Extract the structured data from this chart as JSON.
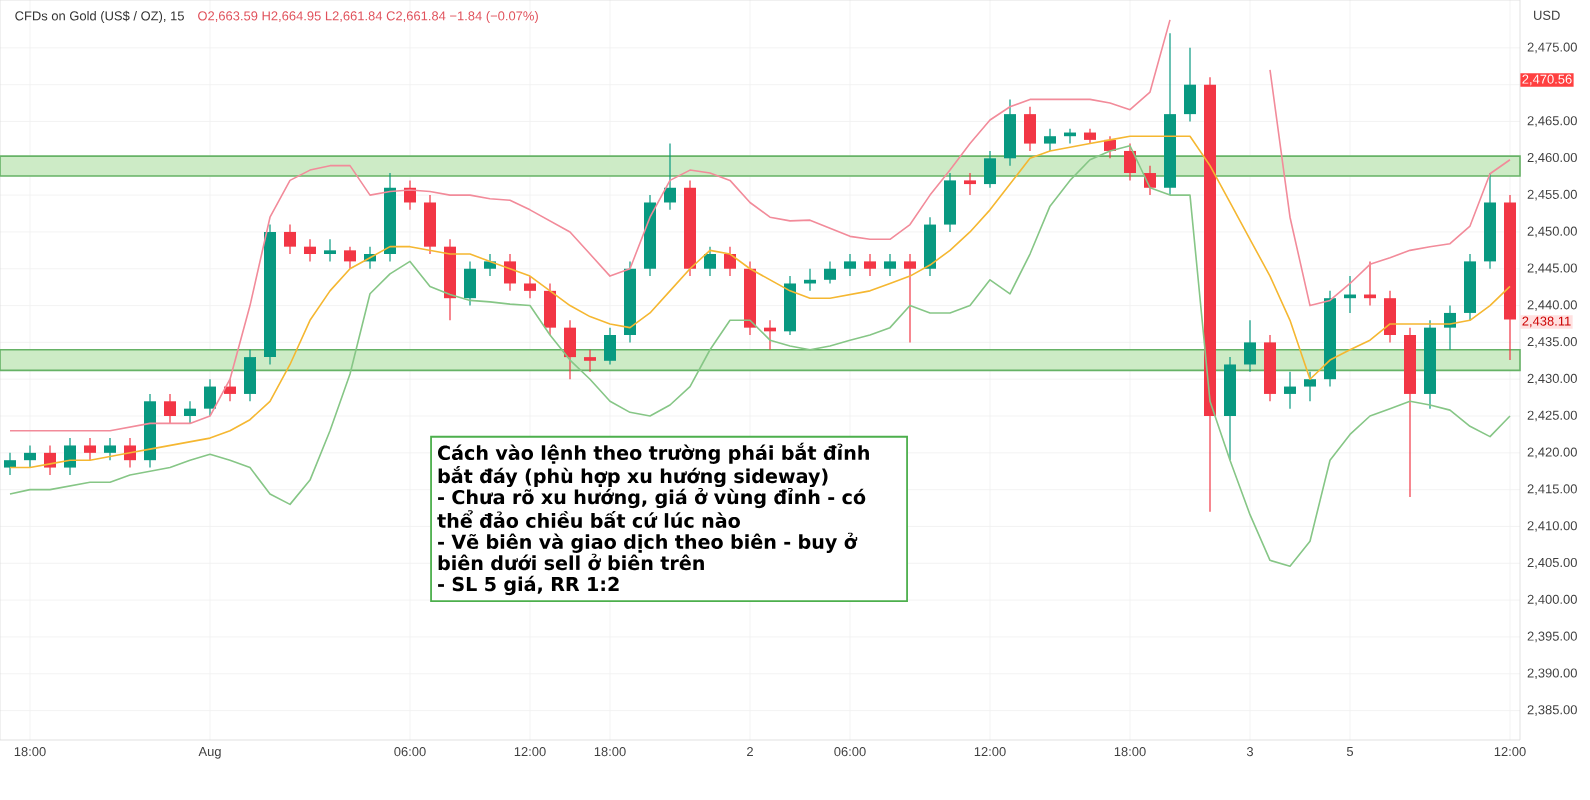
{
  "chart_data": {
    "type": "candlestick",
    "title": "CFDs on Gold (US$ / OZ), 15",
    "subtitle": "O2,663.59 H2,664.95 L2,661.84 C2,661.84 −1.84 (−0.07%)",
    "ylabel": "USD",
    "categories": [
      null,
      "18:00",
      null,
      null,
      null,
      null,
      null,
      null,
      null,
      null,
      "Aug",
      null,
      null,
      null,
      null,
      null,
      null,
      null,
      null,
      null,
      "06:00",
      null,
      null,
      null,
      null,
      null,
      "12:00",
      null,
      null,
      null,
      "18:00",
      null,
      null,
      null,
      null,
      null,
      null,
      "2",
      null,
      null,
      null,
      null,
      "06:00",
      null,
      null,
      null,
      null,
      null,
      null,
      "12:00",
      null,
      null,
      null,
      null,
      null,
      null,
      "18:00",
      null,
      null,
      null,
      null,
      null,
      "3",
      null,
      null,
      null,
      null,
      "5",
      null,
      null,
      null,
      null,
      null,
      null,
      null,
      "12:00"
    ],
    "ohlc": [
      [
        2418,
        2420,
        2417,
        2419
      ],
      [
        2419,
        2421,
        2418,
        2420
      ],
      [
        2420,
        2421,
        2417,
        2418
      ],
      [
        2418,
        2422,
        2417,
        2421
      ],
      [
        2421,
        2422,
        2419,
        2420
      ],
      [
        2420,
        2422,
        2419,
        2421
      ],
      [
        2421,
        2422,
        2418,
        2419
      ],
      [
        2419,
        2428,
        2418,
        2427
      ],
      [
        2427,
        2428,
        2424,
        2425
      ],
      [
        2425,
        2427,
        2424,
        2426
      ],
      [
        2426,
        2430,
        2425,
        2429
      ],
      [
        2429,
        2430,
        2427,
        2428
      ],
      [
        2428,
        2434,
        2427,
        2433
      ],
      [
        2433,
        2451,
        2432,
        2450
      ],
      [
        2450,
        2451,
        2447,
        2448
      ],
      [
        2448,
        2449,
        2446,
        2447
      ],
      [
        2447,
        2449,
        2446,
        2447.5
      ],
      [
        2447.5,
        2448,
        2445,
        2446
      ],
      [
        2446,
        2448,
        2445,
        2447
      ],
      [
        2447,
        2458,
        2446,
        2456
      ],
      [
        2456,
        2457,
        2453,
        2454
      ],
      [
        2454,
        2455,
        2447,
        2448
      ],
      [
        2448,
        2449,
        2438,
        2441
      ],
      [
        2441,
        2446,
        2440,
        2445
      ],
      [
        2445,
        2447,
        2444,
        2446
      ],
      [
        2446,
        2447,
        2442,
        2443
      ],
      [
        2443,
        2444,
        2441,
        2442
      ],
      [
        2442,
        2443,
        2436,
        2437
      ],
      [
        2437,
        2438,
        2430,
        2433
      ],
      [
        2433,
        2434,
        2431,
        2432.5
      ],
      [
        2432.5,
        2437,
        2432,
        2436
      ],
      [
        2436,
        2446,
        2435,
        2445
      ],
      [
        2445,
        2455,
        2444,
        2454
      ],
      [
        2454,
        2462,
        2453,
        2456
      ],
      [
        2456,
        2457,
        2444,
        2445
      ],
      [
        2445,
        2448,
        2444,
        2447
      ],
      [
        2447,
        2448,
        2444,
        2445
      ],
      [
        2445,
        2446,
        2436,
        2437
      ],
      [
        2437,
        2438,
        2434,
        2436.5
      ],
      [
        2436.5,
        2444,
        2436,
        2443
      ],
      [
        2443,
        2445,
        2442,
        2443.5
      ],
      [
        2443.5,
        2446,
        2443,
        2445
      ],
      [
        2445,
        2447,
        2444,
        2446
      ],
      [
        2446,
        2447,
        2444,
        2445
      ],
      [
        2445,
        2447,
        2444,
        2446
      ],
      [
        2446,
        2447,
        2435,
        2445
      ],
      [
        2445,
        2452,
        2444,
        2451
      ],
      [
        2451,
        2458,
        2450,
        2457
      ],
      [
        2457,
        2458,
        2455,
        2456.5
      ],
      [
        2456.5,
        2461,
        2456,
        2460
      ],
      [
        2460,
        2468,
        2459,
        2466
      ],
      [
        2466,
        2467,
        2461,
        2462
      ],
      [
        2462,
        2464,
        2461,
        2463
      ],
      [
        2463,
        2464,
        2462,
        2463.5
      ],
      [
        2463.5,
        2464,
        2462,
        2462.5
      ],
      [
        2462.5,
        2463,
        2460,
        2461
      ],
      [
        2461,
        2462,
        2457,
        2458
      ],
      [
        2458,
        2459,
        2455,
        2456
      ],
      [
        2456,
        2477,
        2455,
        2466
      ],
      [
        2466,
        2475,
        2465,
        2470
      ],
      [
        2470,
        2471,
        2412,
        2425
      ],
      [
        2425,
        2433,
        2419,
        2432
      ],
      [
        2432,
        2438,
        2431,
        2435
      ],
      [
        2435,
        2436,
        2427,
        2428
      ],
      [
        2428,
        2431,
        2426,
        2429
      ],
      [
        2429,
        2431,
        2427,
        2430
      ],
      [
        2430,
        2442,
        2429,
        2441
      ],
      [
        2441,
        2444,
        2439,
        2441.5
      ],
      [
        2441.5,
        2446,
        2440,
        2441
      ],
      [
        2441,
        2442,
        2435,
        2436
      ],
      [
        2436,
        2437,
        2414,
        2428
      ],
      [
        2428,
        2438,
        2426,
        2437
      ],
      [
        2437,
        2440,
        2434,
        2439
      ],
      [
        2439,
        2447,
        2438,
        2446
      ],
      [
        2446,
        2458,
        2445,
        2454
      ],
      [
        2454,
        2455,
        2432.6,
        2438.11
      ]
    ],
    "series": [
      {
        "type": "line",
        "color": "#f28b9a",
        "values": [
          2423,
          2423,
          2423,
          2423,
          2423,
          2423,
          2423.5,
          2424,
          2424,
          2424,
          2425,
          2430,
          2440,
          2452,
          2457,
          2458.4,
          2459,
          2459,
          2455,
          2455.5,
          2455.7,
          2455.5,
          2455,
          2455,
          2454.5,
          2454.3,
          2453,
          2451.5,
          2450,
          2447,
          2444,
          2445,
          2452,
          2457,
          2458.4,
          2458,
          2457,
          2454,
          2452,
          2451.5,
          2451.6,
          2450.5,
          2449.4,
          2449,
          2449,
          2451,
          2455,
          2458.4,
          2462,
          2465.2,
          2467,
          2468,
          2468,
          2468,
          2468,
          2467.5,
          2466.6,
          2469,
          2478.8,
          null,
          null,
          null,
          null,
          2472,
          2452,
          2440,
          2440.7,
          2443,
          2445.6,
          2446.5,
          2447.5,
          2448,
          2448.4,
          2450.8,
          2457.9,
          2459.8
        ]
      },
      {
        "type": "line",
        "color": "#f5b731",
        "values": [
          2418,
          2418,
          2418.5,
          2419,
          2419,
          2419.5,
          2420,
          2420.5,
          2421,
          2421.5,
          2422,
          2423,
          2424.5,
          2427,
          2432,
          2438,
          2442,
          2445,
          2446.5,
          2448,
          2448,
          2447.5,
          2447,
          2447,
          2446,
          2445,
          2444,
          2442,
          2440,
          2438.5,
          2437.5,
          2437,
          2439,
          2442,
          2445,
          2447.5,
          2447,
          2445,
          2443.5,
          2442,
          2441,
          2441,
          2441.5,
          2442,
          2443,
          2444,
          2445.5,
          2447.5,
          2450,
          2453,
          2456.5,
          2460,
          2461,
          2461.5,
          2462,
          2462.5,
          2463,
          2463,
          2463,
          2463,
          2459,
          2454,
          2449,
          2444,
          2438,
          2430,
          2432.6,
          2434,
          2435.3,
          2437.5,
          2437.5,
          2437.5,
          2437.5,
          2438,
          2440,
          2442.6
        ]
      },
      {
        "type": "line",
        "color": "#86c686",
        "values": [
          2414.4,
          2415,
          2415,
          2415.5,
          2416,
          2416,
          2417,
          2417.5,
          2418,
          2419,
          2419.8,
          2419,
          2418,
          2414.4,
          2413,
          2416.3,
          2423,
          2430.7,
          2441.6,
          2444.3,
          2446,
          2442.6,
          2441.5,
          2440.7,
          2440.5,
          2440.2,
          2440,
          2436,
          2432.6,
          2430,
          2427,
          2425.5,
          2425,
          2426.5,
          2429,
          2434,
          2438,
          2438,
          2435.3,
          2434.5,
          2434,
          2434.5,
          2435.3,
          2436,
          2437,
          2440,
          2439,
          2439,
          2440,
          2443.5,
          2441.6,
          2447,
          2453.5,
          2457,
          2459.8,
          2461,
          2461.7,
          2456,
          2455,
          2455,
          2427,
          2419,
          2411.6,
          2405.4,
          2404.6,
          2408,
          2419,
          2422.5,
          2425,
          2426,
          2427,
          2426.5,
          2425.8,
          2423.6,
          2422.2,
          2425
        ]
      }
    ],
    "bands": [
      {
        "axis": "y",
        "from": 2457.6,
        "to": 2460.3,
        "color": "#cdebc6"
      },
      {
        "axis": "y",
        "from": 2431.2,
        "to": 2434,
        "color": "#cdebc6"
      }
    ],
    "annotations": [
      "Cách vào lệnh theo trường phái bắt đỉnh bắt đáy (phù hợp xu hướng sideway)",
      "- Chưa rõ xu hướng, giá ở vùng đỉnh - có thể đảo chiều bất cứ lúc nào",
      "- Vẽ biên và giao dịch theo biên - buy ở biên dưới sell ở biên trên",
      "- SL 5 giá, RR 1:2",
      "2,470.56",
      "2,438.11"
    ],
    "ylim": [
      2381,
      2481.5
    ],
    "yticks": [
      {
        "value": 2385,
        "label": "2,385.00"
      },
      {
        "value": 2390,
        "label": "2,390.00"
      },
      {
        "value": 2395,
        "label": "2,395.00"
      },
      {
        "value": 2400,
        "label": "2,400.00"
      },
      {
        "value": 2405,
        "label": "2,405.00"
      },
      {
        "value": 2410,
        "label": "2,410.00"
      },
      {
        "value": 2415,
        "label": "2,415.00"
      },
      {
        "value": 2420,
        "label": "2,420.00"
      },
      {
        "value": 2425,
        "label": "2,425.00"
      },
      {
        "value": 2430,
        "label": "2,430.00"
      },
      {
        "value": 2435,
        "label": "2,435.00"
      },
      {
        "value": 2440,
        "label": "2,440.00"
      },
      {
        "value": 2445,
        "label": "2,445.00"
      },
      {
        "value": 2450,
        "label": "2,450.00"
      },
      {
        "value": 2455,
        "label": "2,455.00"
      },
      {
        "value": 2460,
        "label": "2,460.00"
      },
      {
        "value": 2465,
        "label": "2,465.00"
      },
      {
        "value": 2470,
        "label": null
      },
      {
        "value": 2475,
        "label": "2,475.00"
      }
    ],
    "grid": true
  }
}
